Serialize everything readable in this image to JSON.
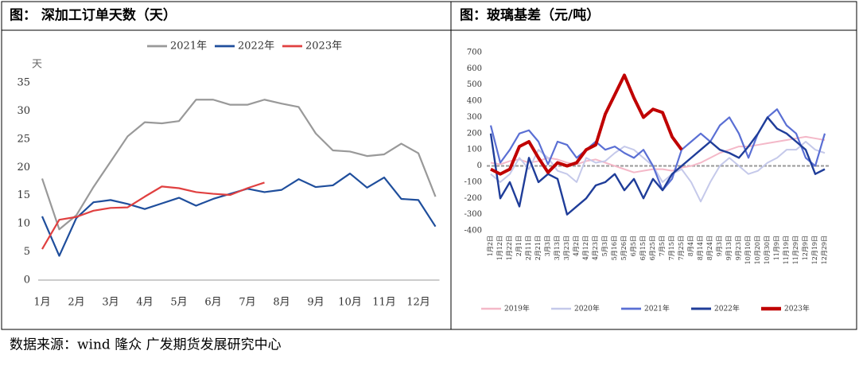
{
  "chart_data": [
    {
      "type": "line",
      "title": "图： 深加工订单天数（天）",
      "y_label": "天",
      "categories": [
        "1月",
        null,
        "2月",
        null,
        "3月",
        null,
        "4月",
        null,
        "5月",
        null,
        "6月",
        null,
        "7月",
        null,
        "8月",
        null,
        "9月",
        null,
        "10月",
        null,
        "11月",
        null,
        "12月",
        null
      ],
      "ylim": [
        0,
        35
      ],
      "yticks": [
        0,
        5,
        10,
        15,
        20,
        25,
        30,
        35
      ],
      "legend": "top",
      "series": [
        {
          "name": "2021年",
          "color": "#999999",
          "values": [
            18,
            9,
            11.5,
            16.5,
            21,
            25.5,
            28,
            27.8,
            28.2,
            32,
            32,
            31.1,
            31.1,
            32,
            31.3,
            30.7,
            26,
            23,
            22.8,
            22,
            22.3,
            24.2,
            22.5,
            14.8
          ]
        },
        {
          "name": "2022年",
          "color": "#1f4e9c",
          "values": [
            11.3,
            4.3,
            11,
            13.8,
            14.2,
            13.5,
            12.6,
            13.6,
            14.6,
            13.2,
            14.4,
            15.3,
            16.2,
            15.6,
            16,
            17.9,
            16.5,
            16.8,
            18.9,
            16.4,
            18.2,
            14.4,
            14.2,
            9.5
          ]
        },
        {
          "name": "2023年",
          "color": "#e04040",
          "values": [
            5.5,
            10.7,
            11.2,
            12.3,
            12.8,
            12.9,
            14.8,
            16.6,
            16.3,
            15.6,
            15.3,
            15.1,
            16.3,
            17.3,
            null,
            null,
            null,
            null,
            null,
            null,
            null,
            null,
            null,
            null
          ]
        }
      ]
    },
    {
      "type": "line",
      "title": "图：玻璃基差（元/吨）",
      "categories": [
        "1月2日",
        "1月12日",
        "1月22日",
        "2月1日",
        "2月11日",
        "2月21日",
        "3月3日",
        "3月13日",
        "3月23日",
        "4月2日",
        "4月12日",
        "4月23日",
        "5月3日",
        "5月16日",
        "5月26日",
        "6月5日",
        "6月15日",
        "6月25日",
        "7月5日",
        "7月15日",
        "7月25日",
        "8月4日",
        "8月14日",
        "8月24日",
        "9月3日",
        "9月13日",
        "9月23日",
        "10月10日",
        "10月20日",
        "10月30日",
        "11月9日",
        "11月19日",
        "11月29日",
        "12月9日",
        "12月19日",
        "12月29日"
      ],
      "ylim": [
        -400,
        700
      ],
      "yticks": [
        -400,
        -300,
        -200,
        -100,
        0,
        100,
        200,
        300,
        400,
        500,
        600,
        700
      ],
      "legend": "bottom",
      "series": [
        {
          "name": "2019年",
          "color": "#f4b8c8",
          "values": [
            20,
            10,
            30,
            40,
            20,
            30,
            50,
            40,
            20,
            10,
            30,
            40,
            20,
            0,
            -20,
            -40,
            -30,
            -20,
            -20,
            -30,
            -10,
            0,
            20,
            50,
            80,
            100,
            120,
            120,
            130,
            140,
            150,
            160,
            170,
            180,
            170,
            160
          ]
        },
        {
          "name": "2020年",
          "color": "#c5c9ea",
          "values": [
            -50,
            -100,
            -50,
            50,
            -20,
            100,
            50,
            -30,
            -50,
            -100,
            50,
            20,
            30,
            80,
            120,
            100,
            50,
            0,
            -100,
            -50,
            -20,
            -100,
            -220,
            -100,
            0,
            50,
            0,
            -50,
            -30,
            20,
            50,
            100,
            100,
            150,
            100,
            80
          ]
        },
        {
          "name": "2021年",
          "color": "#5a6fd4",
          "values": [
            250,
            20,
            100,
            200,
            220,
            150,
            10,
            150,
            130,
            50,
            100,
            150,
            100,
            120,
            80,
            50,
            100,
            0,
            -150,
            -80,
            100,
            150,
            200,
            150,
            250,
            300,
            200,
            50,
            200,
            300,
            350,
            250,
            200,
            50,
            0,
            200
          ]
        },
        {
          "name": "2022年",
          "color": "#1f3d99",
          "values": [
            200,
            -200,
            -100,
            -250,
            50,
            -100,
            -50,
            -80,
            -300,
            -250,
            -200,
            -120,
            -100,
            -50,
            -150,
            -80,
            -200,
            -80,
            -150,
            -50,
            0,
            50,
            100,
            150,
            100,
            80,
            50,
            120,
            200,
            300,
            230,
            200,
            150,
            100,
            -50,
            -20
          ]
        },
        {
          "name": "2023年",
          "color": "#c00000",
          "values": [
            -20,
            -50,
            -20,
            120,
            150,
            50,
            -40,
            20,
            0,
            20,
            100,
            130,
            320,
            440,
            560,
            420,
            300,
            350,
            330,
            180,
            100,
            null,
            null,
            null,
            null,
            null,
            null,
            null,
            null,
            null,
            null,
            null,
            null,
            null,
            null,
            null
          ]
        }
      ]
    }
  ],
  "source": "数据来源：wind 隆众 广发期货发展研究中心"
}
